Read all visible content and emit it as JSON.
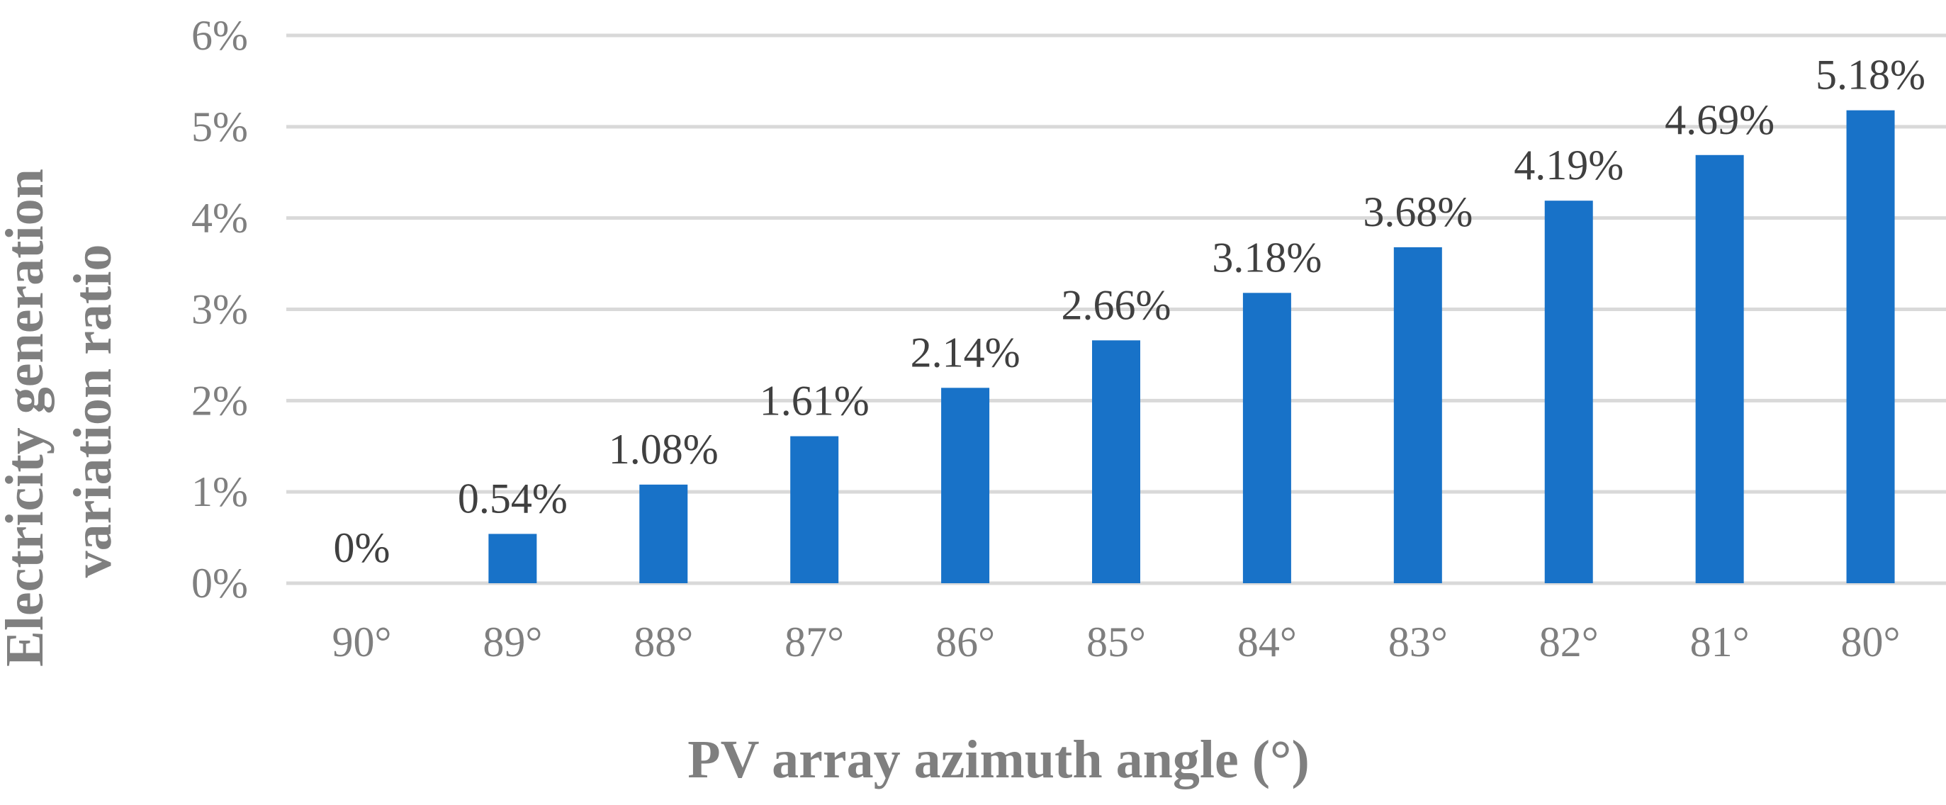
{
  "chart_data": {
    "type": "bar",
    "title": "",
    "xlabel": "PV array azimuth angle (°)",
    "ylabel_lines": [
      "Electricity generation",
      "variation ratio"
    ],
    "categories": [
      "90°",
      "89°",
      "88°",
      "87°",
      "86°",
      "85°",
      "84°",
      "83°",
      "82°",
      "81°",
      "80°"
    ],
    "values": [
      0,
      0.54,
      1.08,
      1.61,
      2.14,
      2.66,
      3.18,
      3.68,
      4.19,
      4.69,
      5.18
    ],
    "data_labels": [
      "0%",
      "0.54%",
      "1.08%",
      "1.61%",
      "2.14%",
      "2.66%",
      "3.18%",
      "3.68%",
      "4.19%",
      "4.69%",
      "5.18%"
    ],
    "y_ticks": [
      "0%",
      "1%",
      "2%",
      "3%",
      "4%",
      "5%",
      "6%"
    ],
    "ylim": [
      0,
      6
    ],
    "grid": true,
    "legend": "none",
    "colors": {
      "bar": "#1872c8",
      "grid": "#d9d9d9",
      "tick_text": "#7f7f7f",
      "label_text": "#404040"
    }
  }
}
